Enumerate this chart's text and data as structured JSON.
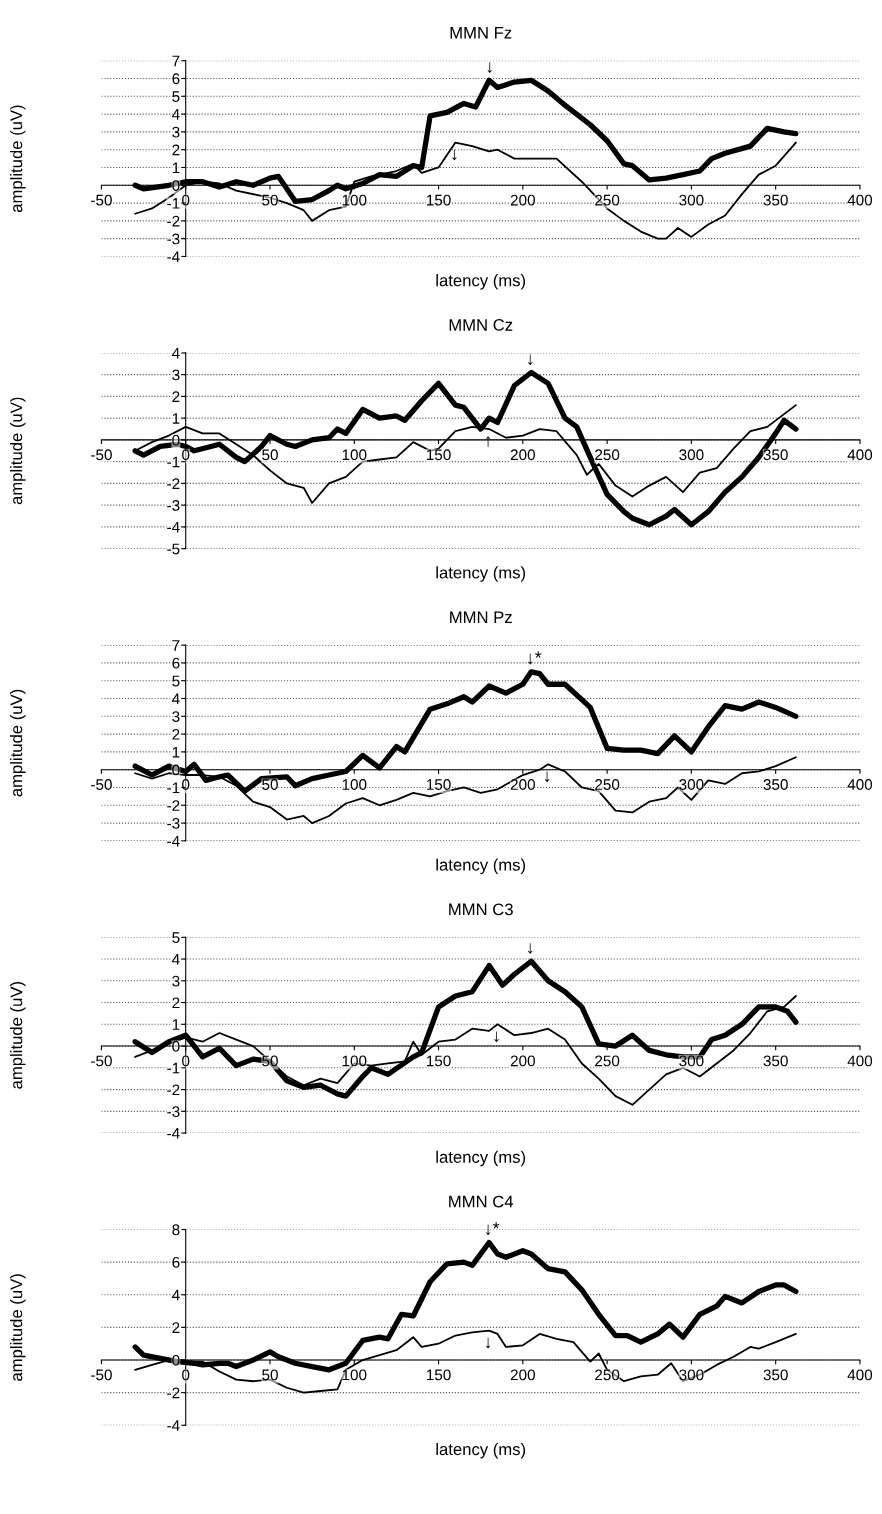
{
  "chart_data": [
    {
      "type": "line",
      "title": "MMN Fz",
      "xlabel": "latency (ms)",
      "ylabel": "amplitude (uV)",
      "xlim": [
        -50,
        400
      ],
      "xticks": [
        -50,
        0,
        50,
        100,
        150,
        200,
        250,
        300,
        350,
        400
      ],
      "ylim": [
        -4,
        7
      ],
      "yticks": [
        -4,
        -3,
        -2,
        -1,
        0,
        1,
        2,
        3,
        4,
        5,
        6,
        7
      ],
      "grid": "y",
      "line_style": "solid",
      "marker": "none",
      "series": [
        {
          "color": "#000000",
          "x": [
            -30,
            -25,
            -10,
            0,
            10,
            20,
            30,
            40,
            50,
            55,
            65,
            75,
            85,
            90,
            95,
            105,
            115,
            125,
            135,
            140,
            145,
            155,
            165,
            172,
            180,
            185,
            195,
            205,
            215,
            225,
            240,
            250,
            260,
            265,
            275,
            285,
            295,
            305,
            312,
            320,
            335,
            345,
            355,
            362
          ],
          "values": [
            0,
            -0.2,
            0,
            0.2,
            0.2,
            -0.1,
            0.2,
            0,
            0.4,
            0.5,
            -0.9,
            -0.8,
            -0.3,
            0,
            -0.2,
            0.1,
            0.6,
            0.5,
            1.1,
            1.0,
            3.9,
            4.1,
            4.6,
            4.4,
            5.9,
            5.5,
            5.8,
            5.9,
            5.3,
            4.5,
            3.4,
            2.5,
            1.2,
            1.1,
            0.3,
            0.4,
            0.6,
            0.8,
            1.5,
            1.8,
            2.2,
            3.2,
            3.0,
            2.9
          ]
        },
        {
          "color": "#000000",
          "x": [
            -30,
            -20,
            -10,
            0,
            10,
            20,
            30,
            50,
            60,
            70,
            75,
            85,
            95,
            100,
            110,
            125,
            135,
            140,
            150,
            160,
            170,
            180,
            185,
            195,
            210,
            220,
            235,
            250,
            260,
            270,
            280,
            285,
            292,
            300,
            310,
            320,
            330,
            340,
            350,
            362
          ],
          "values": [
            -1.6,
            -1.3,
            -0.7,
            0,
            0.2,
            0.1,
            -0.3,
            -0.7,
            -1.0,
            -1.4,
            -2.0,
            -1.4,
            -1.2,
            0.2,
            0.5,
            0.8,
            1.2,
            0.7,
            1.0,
            2.4,
            2.2,
            1.9,
            2.0,
            1.5,
            1.5,
            1.5,
            0.2,
            -1.3,
            -2.0,
            -2.6,
            -3.0,
            -3.0,
            -2.4,
            -2.9,
            -2.2,
            -1.7,
            -0.5,
            0.6,
            1.1,
            2.4
          ]
        }
      ],
      "annotations": [
        {
          "text": "↓",
          "x": 181,
          "y": 5.9
        },
        {
          "text": "↓",
          "x": 160,
          "y": 2.4
        }
      ]
    },
    {
      "type": "line",
      "title": "MMN Cz",
      "xlabel": "latency (ms)",
      "ylabel": "amplitude (uV)",
      "xlim": [
        -50,
        400
      ],
      "xticks": [
        -50,
        0,
        50,
        100,
        150,
        200,
        250,
        300,
        350,
        400
      ],
      "ylim": [
        -5,
        4
      ],
      "yticks": [
        -5,
        -4,
        -3,
        -2,
        -1,
        0,
        1,
        2,
        3,
        4
      ],
      "grid": "y",
      "line_style": "solid",
      "marker": "none",
      "series": [
        {
          "color": "#000000",
          "x": [
            -30,
            -25,
            -15,
            -5,
            0,
            5,
            15,
            20,
            30,
            35,
            45,
            50,
            60,
            65,
            75,
            85,
            90,
            95,
            105,
            115,
            125,
            130,
            140,
            150,
            160,
            165,
            175,
            180,
            185,
            195,
            205,
            215,
            225,
            232,
            240,
            250,
            260,
            265,
            275,
            285,
            290,
            300,
            310,
            320,
            330,
            340,
            350,
            355,
            362
          ],
          "values": [
            -0.5,
            -0.7,
            -0.3,
            -0.2,
            -0.3,
            -0.5,
            -0.3,
            -0.2,
            -0.8,
            -1.0,
            -0.3,
            0.2,
            -0.2,
            -0.3,
            0,
            0.1,
            0.5,
            0.3,
            1.4,
            1.0,
            1.1,
            0.9,
            1.8,
            2.6,
            1.6,
            1.5,
            0.5,
            1.0,
            0.8,
            2.5,
            3.1,
            2.6,
            1.0,
            0.6,
            -0.8,
            -2.5,
            -3.3,
            -3.6,
            -3.9,
            -3.5,
            -3.2,
            -3.9,
            -3.3,
            -2.4,
            -1.7,
            -0.8,
            0.3,
            0.9,
            0.5
          ]
        },
        {
          "color": "#000000",
          "x": [
            -30,
            -20,
            -10,
            0,
            10,
            20,
            30,
            40,
            50,
            60,
            70,
            75,
            85,
            95,
            105,
            115,
            125,
            135,
            145,
            150,
            160,
            170,
            180,
            190,
            200,
            210,
            220,
            232,
            238,
            245,
            255,
            265,
            275,
            285,
            295,
            305,
            315,
            325,
            335,
            345,
            362
          ],
          "values": [
            -0.5,
            -0.1,
            0.2,
            0.6,
            0.3,
            0.3,
            -0.2,
            -0.7,
            -1.4,
            -2.0,
            -2.2,
            -2.9,
            -2.0,
            -1.7,
            -1.0,
            -0.9,
            -0.8,
            -0.1,
            -0.5,
            -0.4,
            0.4,
            0.6,
            0.5,
            0.1,
            0.2,
            0.5,
            0.4,
            -0.7,
            -1.6,
            -1.1,
            -2.1,
            -2.6,
            -2.1,
            -1.7,
            -2.4,
            -1.5,
            -1.3,
            -0.4,
            0.4,
            0.6,
            1.6
          ]
        }
      ],
      "annotations": [
        {
          "text": "↓",
          "x": 205,
          "y": 3.1
        },
        {
          "text": "↑",
          "x": 180,
          "y": 0.5
        }
      ]
    },
    {
      "type": "line",
      "title": "MMN Pz",
      "xlabel": "latency (ms)",
      "ylabel": "amplitude (uV)",
      "xlim": [
        -50,
        400
      ],
      "xticks": [
        -50,
        0,
        50,
        100,
        150,
        200,
        250,
        300,
        350,
        400
      ],
      "ylim": [
        -4,
        7
      ],
      "yticks": [
        -4,
        -3,
        -2,
        -1,
        0,
        1,
        2,
        3,
        4,
        5,
        6,
        7
      ],
      "grid": "y",
      "line_style": "solid",
      "marker": "none",
      "series": [
        {
          "color": "#000000",
          "x": [
            -30,
            -20,
            -10,
            0,
            5,
            12,
            20,
            25,
            35,
            45,
            60,
            65,
            75,
            85,
            95,
            105,
            115,
            125,
            130,
            145,
            155,
            165,
            170,
            180,
            190,
            200,
            205,
            210,
            215,
            225,
            240,
            250,
            260,
            270,
            280,
            290,
            300,
            310,
            320,
            330,
            340,
            350,
            362
          ],
          "values": [
            0.2,
            -0.3,
            0.2,
            -0.1,
            0.3,
            -0.6,
            -0.4,
            -0.3,
            -1.2,
            -0.5,
            -0.4,
            -0.9,
            -0.5,
            -0.3,
            -0.1,
            0.8,
            0.1,
            1.3,
            1.0,
            3.4,
            3.7,
            4.1,
            3.8,
            4.7,
            4.3,
            4.8,
            5.5,
            5.4,
            4.8,
            4.8,
            3.5,
            1.2,
            1.1,
            1.1,
            0.9,
            1.9,
            1.0,
            2.4,
            3.6,
            3.4,
            3.8,
            3.5,
            3.0
          ]
        },
        {
          "color": "#000000",
          "x": [
            -30,
            -20,
            -10,
            0,
            10,
            20,
            30,
            40,
            50,
            60,
            70,
            75,
            85,
            95,
            105,
            115,
            125,
            135,
            145,
            155,
            165,
            175,
            185,
            200,
            210,
            215,
            225,
            235,
            245,
            255,
            265,
            275,
            285,
            292,
            300,
            310,
            320,
            330,
            340,
            350,
            362
          ],
          "values": [
            -0.2,
            -0.5,
            -0.2,
            -0.3,
            -0.3,
            -0.4,
            -0.9,
            -1.8,
            -2.1,
            -2.8,
            -2.6,
            -3.0,
            -2.6,
            -1.9,
            -1.6,
            -2.0,
            -1.7,
            -1.3,
            -1.5,
            -1.2,
            -1.0,
            -1.3,
            -1.1,
            -0.3,
            0.0,
            0.3,
            -0.1,
            -1.0,
            -1.2,
            -2.3,
            -2.4,
            -1.8,
            -1.6,
            -1.0,
            -1.7,
            -0.6,
            -0.8,
            -0.2,
            -0.1,
            0.2,
            0.7
          ]
        }
      ],
      "annotations": [
        {
          "text": "↓*",
          "x": 205,
          "y": 5.5
        },
        {
          "text": "↓",
          "x": 215,
          "y": 0.3
        }
      ]
    },
    {
      "type": "line",
      "title": "MMN C3",
      "xlabel": "latency (ms)",
      "ylabel": "amplitude (uV)",
      "xlim": [
        -50,
        400
      ],
      "xticks": [
        -50,
        0,
        50,
        100,
        150,
        200,
        250,
        300,
        350,
        400
      ],
      "ylim": [
        -4,
        5
      ],
      "yticks": [
        -4,
        -3,
        -2,
        -1,
        0,
        1,
        2,
        3,
        4,
        5
      ],
      "grid": "y",
      "line_style": "solid",
      "marker": "none",
      "series": [
        {
          "color": "#000000",
          "x": [
            -30,
            -20,
            -10,
            0,
            10,
            20,
            30,
            40,
            50,
            60,
            70,
            80,
            90,
            95,
            105,
            110,
            120,
            135,
            140,
            150,
            160,
            170,
            180,
            188,
            195,
            205,
            215,
            225,
            235,
            245,
            255,
            265,
            275,
            285,
            295,
            305,
            312,
            320,
            330,
            340,
            350,
            357,
            362
          ],
          "values": [
            0.2,
            -0.3,
            0.2,
            0.5,
            -0.5,
            -0.1,
            -0.9,
            -0.6,
            -0.7,
            -1.6,
            -1.9,
            -1.8,
            -2.2,
            -2.3,
            -1.4,
            -1.0,
            -1.3,
            -0.5,
            -0.3,
            1.8,
            2.3,
            2.5,
            3.7,
            2.8,
            3.3,
            3.9,
            3.0,
            2.5,
            1.8,
            0.1,
            0,
            0.5,
            -0.2,
            -0.4,
            -0.5,
            -0.5,
            0.3,
            0.5,
            1.0,
            1.8,
            1.8,
            1.6,
            1.1
          ]
        },
        {
          "color": "#000000",
          "x": [
            -30,
            -20,
            -10,
            0,
            10,
            20,
            30,
            40,
            50,
            60,
            70,
            80,
            90,
            100,
            110,
            120,
            130,
            135,
            140,
            150,
            160,
            170,
            180,
            185,
            195,
            205,
            215,
            225,
            235,
            245,
            255,
            265,
            275,
            285,
            295,
            305,
            315,
            325,
            335,
            345,
            355,
            362
          ],
          "values": [
            -0.5,
            -0.2,
            0.1,
            0.4,
            0.2,
            0.6,
            0.3,
            0,
            -0.7,
            -1.4,
            -1.8,
            -1.5,
            -1.7,
            -0.8,
            -0.9,
            -0.8,
            -0.7,
            0.2,
            -0.4,
            0.2,
            0.3,
            0.8,
            0.7,
            1.0,
            0.5,
            0.6,
            0.8,
            0.3,
            -0.8,
            -1.5,
            -2.3,
            -2.7,
            -2.0,
            -1.3,
            -1.0,
            -1.4,
            -0.8,
            -0.2,
            0.6,
            1.6,
            1.8,
            2.3
          ]
        }
      ],
      "annotations": [
        {
          "text": "↓",
          "x": 205,
          "y": 3.9
        },
        {
          "text": "↓",
          "x": 185,
          "y": 1.0
        }
      ]
    },
    {
      "type": "line",
      "title": "MMN C4",
      "xlabel": "latency (ms)",
      "ylabel": "amplitude (uV)",
      "xlim": [
        -50,
        400
      ],
      "xticks": [
        -50,
        0,
        50,
        100,
        150,
        200,
        250,
        300,
        350,
        400
      ],
      "ylim": [
        -4,
        8
      ],
      "yticks": [
        -4,
        -2,
        0,
        2,
        4,
        6,
        8
      ],
      "grid": "y",
      "line_style": "solid",
      "marker": "none",
      "series": [
        {
          "color": "#000000",
          "x": [
            -30,
            -25,
            -15,
            -5,
            5,
            10,
            20,
            25,
            30,
            40,
            50,
            55,
            65,
            75,
            85,
            95,
            105,
            115,
            120,
            128,
            135,
            145,
            155,
            165,
            170,
            180,
            185,
            190,
            200,
            205,
            215,
            225,
            235,
            245,
            255,
            262,
            270,
            280,
            287,
            295,
            305,
            315,
            320,
            330,
            340,
            350,
            355,
            362
          ],
          "values": [
            0.8,
            0.3,
            0.1,
            -0.1,
            -0.2,
            -0.3,
            -0.2,
            -0.2,
            -0.4,
            0,
            0.5,
            0.2,
            -0.2,
            -0.4,
            -0.6,
            -0.2,
            1.2,
            1.4,
            1.3,
            2.8,
            2.7,
            4.8,
            5.9,
            6.0,
            5.8,
            7.2,
            6.5,
            6.3,
            6.7,
            6.5,
            5.6,
            5.4,
            4.3,
            2.8,
            1.5,
            1.5,
            1.1,
            1.6,
            2.2,
            1.4,
            2.8,
            3.3,
            3.9,
            3.5,
            4.2,
            4.6,
            4.6,
            4.2
          ]
        },
        {
          "color": "#000000",
          "x": [
            -30,
            -20,
            -10,
            0,
            10,
            20,
            30,
            40,
            50,
            60,
            70,
            80,
            90,
            95,
            105,
            115,
            125,
            135,
            140,
            150,
            160,
            170,
            180,
            185,
            190,
            200,
            210,
            220,
            230,
            240,
            245,
            250,
            260,
            270,
            280,
            288,
            295,
            305,
            315,
            325,
            335,
            340,
            350,
            362
          ],
          "values": [
            -0.6,
            -0.3,
            0,
            -0.1,
            -0.1,
            -0.7,
            -1.2,
            -1.3,
            -1.2,
            -1.7,
            -2.0,
            -1.9,
            -1.8,
            -0.6,
            0,
            0.3,
            0.6,
            1.4,
            0.8,
            1.0,
            1.5,
            1.7,
            1.8,
            1.6,
            0.8,
            0.9,
            1.6,
            1.3,
            1.1,
            -0.1,
            0.4,
            -0.6,
            -1.3,
            -1.0,
            -0.9,
            -0.2,
            -1.3,
            -0.9,
            -0.3,
            0.2,
            0.8,
            0.7,
            1.1,
            1.6
          ]
        }
      ],
      "annotations": [
        {
          "text": "↓*",
          "x": 180,
          "y": 7.2
        },
        {
          "text": "↓",
          "x": 180,
          "y": 1.8
        }
      ]
    }
  ]
}
